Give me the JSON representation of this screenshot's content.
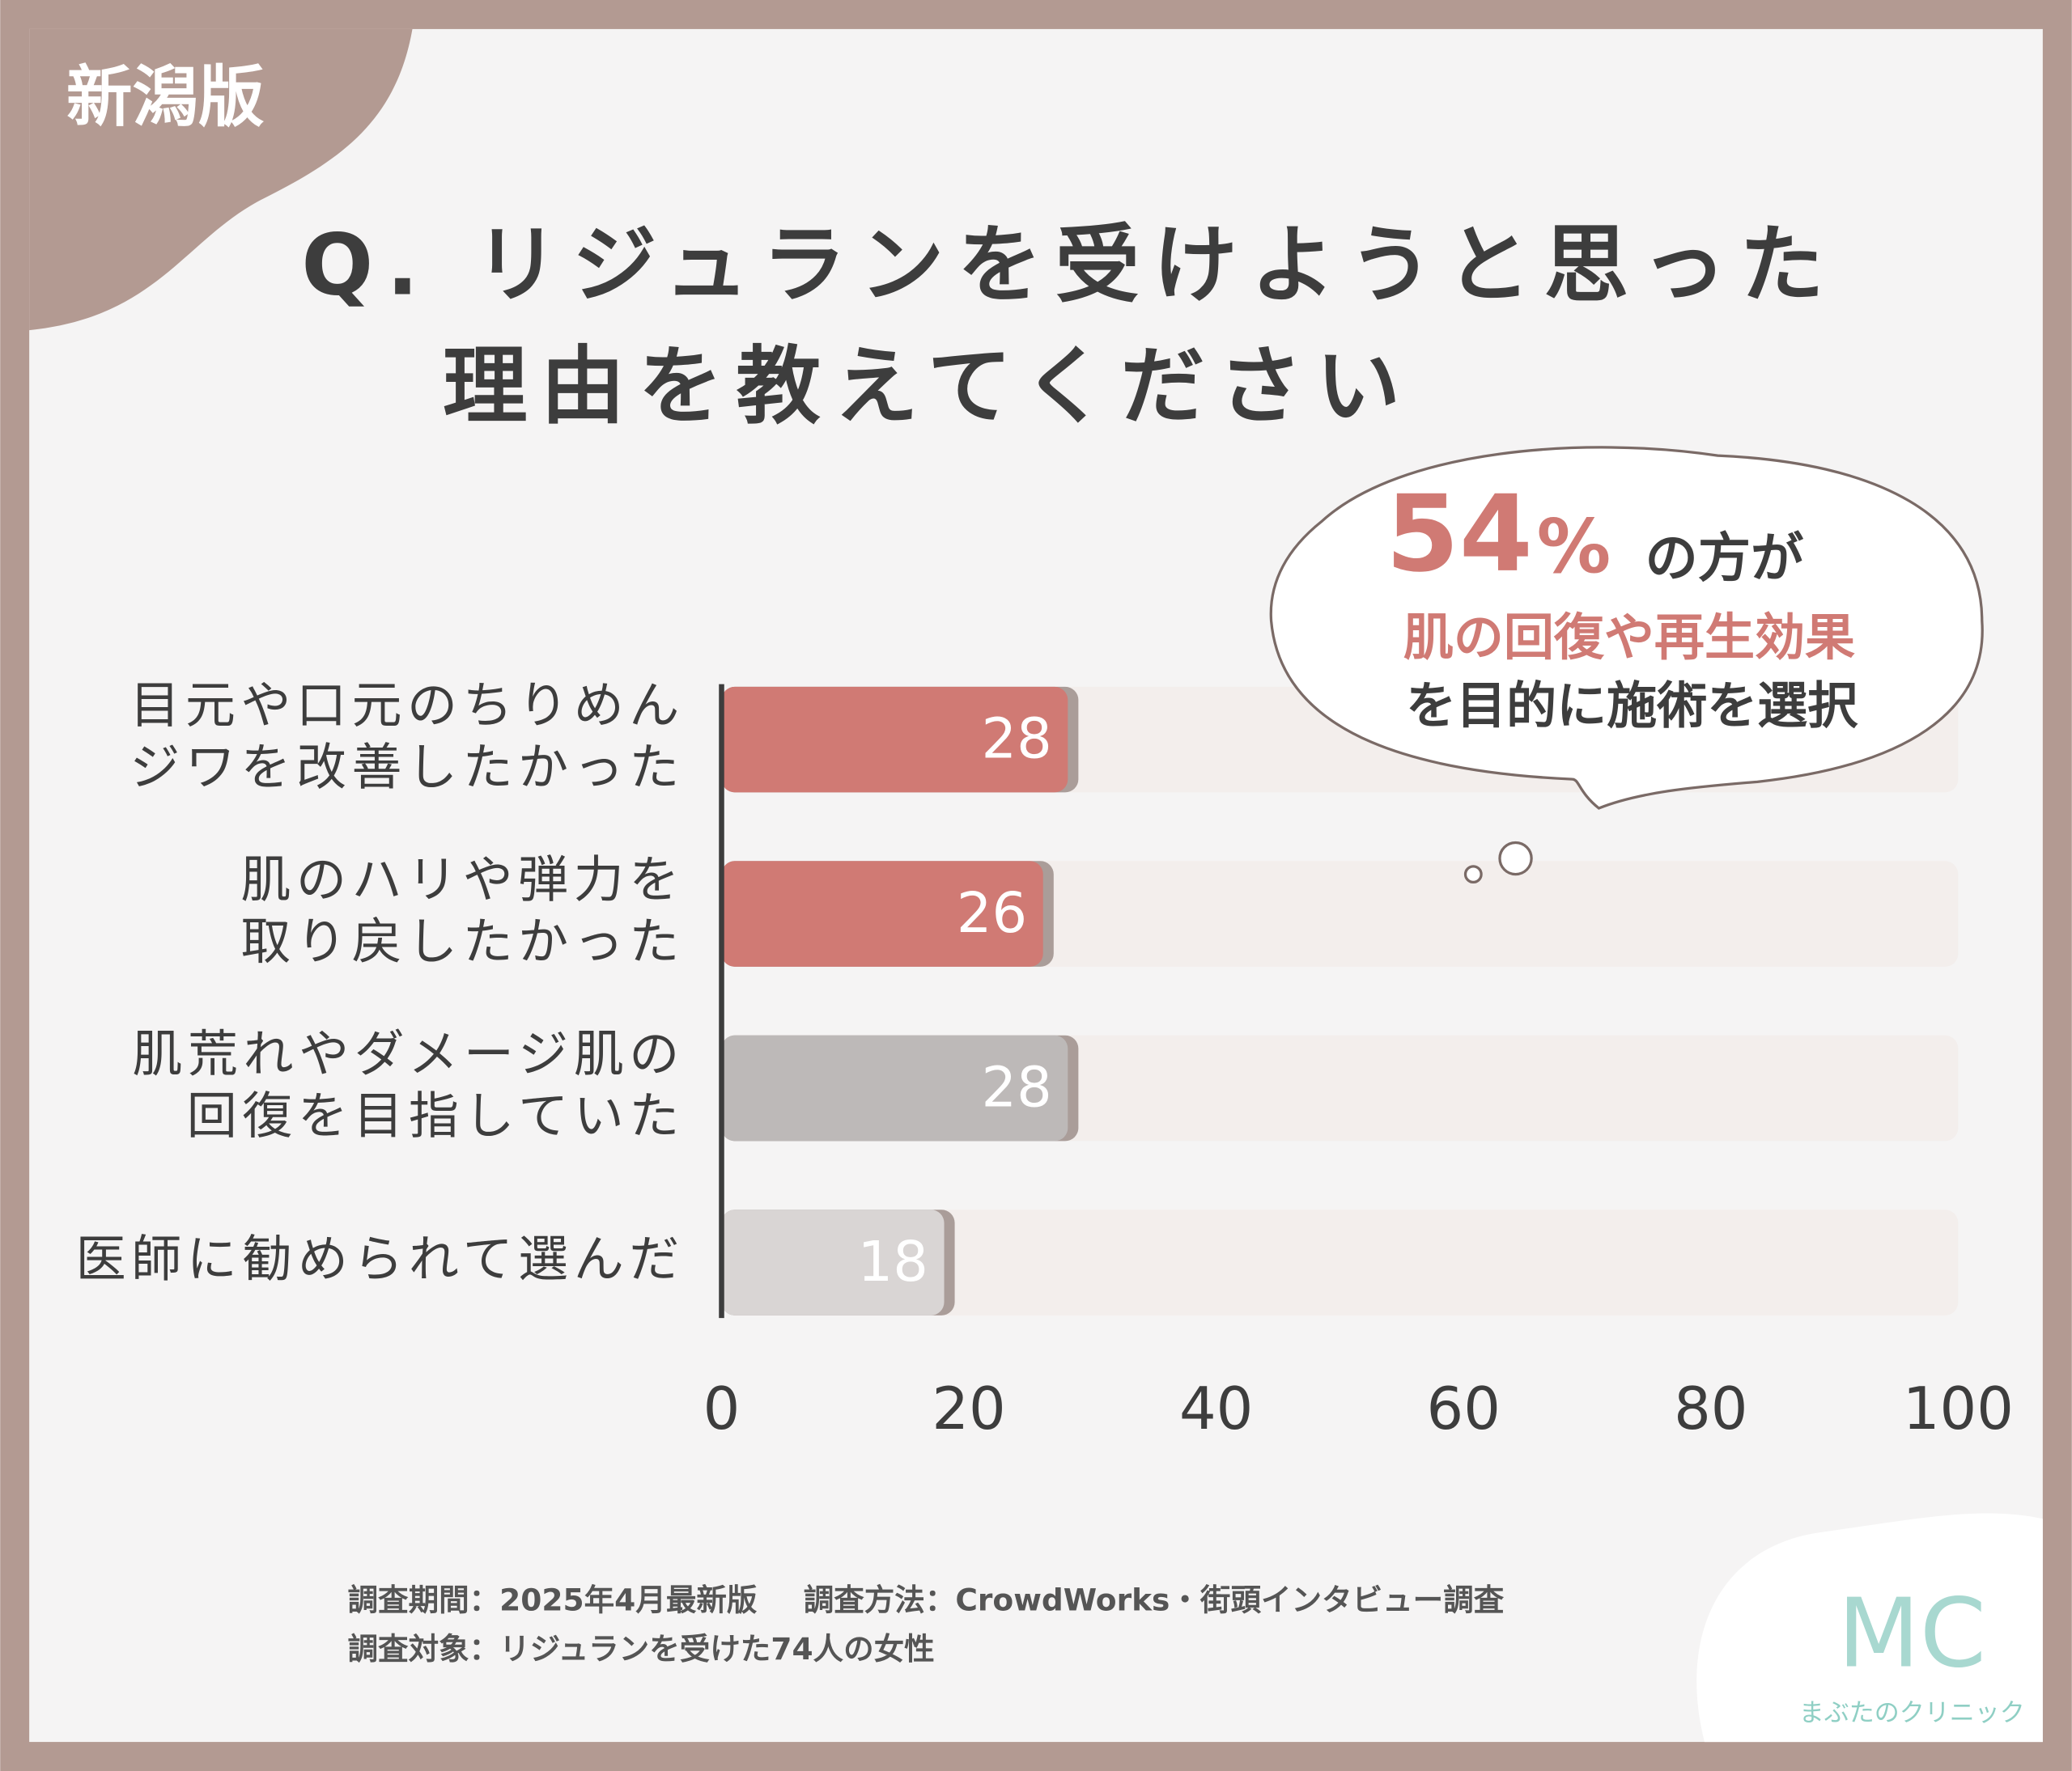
{
  "badge": "新潟版",
  "chart_data": {
    "type": "barh",
    "title": [
      "Q. リジュランを受けようと思った",
      "理由を教えてください"
    ],
    "categories": [
      [
        "目元や口元のちりめん",
        "ジワを改善したかった"
      ],
      [
        "肌のハリや弾力を",
        "取り戻したかった"
      ],
      [
        "肌荒れやダメージ肌の",
        "回復を目指していた"
      ],
      [
        "医師に勧められて選んだ"
      ]
    ],
    "values": [
      28,
      26,
      28,
      18
    ],
    "colors": [
      "#d07a74",
      "#d07a74",
      "#bdb9b8",
      "#d9d5d4"
    ],
    "xlim": [
      0,
      100
    ],
    "xticks": [
      0,
      20,
      40,
      60,
      80,
      100
    ]
  },
  "callout": {
    "value": 54,
    "unit": "%",
    "suffix": "の方が",
    "highlight": "肌の回復や再生効果",
    "rest": "を目的に施術を選択"
  },
  "footer": [
    "調査期間：2025年4月最新版",
    "調査方法：CrowdWorks・街頭インタビュー調査",
    "調査対象：リジュランを受けた74人の女性"
  ],
  "logo": {
    "mark": "MC",
    "name": "まぶたのクリニック"
  }
}
